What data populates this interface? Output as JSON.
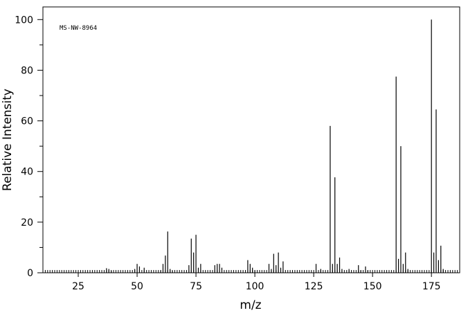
{
  "chart_data": {
    "type": "bar",
    "title": "",
    "annotation": "MS-NW-8964",
    "xlabel": "m/z",
    "ylabel": "Relative Intensity",
    "xlim": [
      10,
      187
    ],
    "ylim": [
      0,
      105
    ],
    "xticks": [
      25,
      50,
      75,
      100,
      125,
      150,
      175
    ],
    "yticks": [
      0,
      20,
      40,
      60,
      80,
      100
    ],
    "x_tick_labels": [
      "25",
      "50",
      "75",
      "100",
      "125",
      "150",
      "175"
    ],
    "y_tick_labels": [
      "0",
      "20",
      "40",
      "60",
      "80",
      "100"
    ],
    "grid": false,
    "series": [
      {
        "points": [
          [
            37,
            1.8
          ],
          [
            38,
            1.5
          ],
          [
            39,
            0.8
          ],
          [
            49,
            1.5
          ],
          [
            50,
            3.5
          ],
          [
            51,
            2.5
          ],
          [
            53,
            2.0
          ],
          [
            60,
            1.0
          ],
          [
            61,
            3.5
          ],
          [
            62,
            6.8
          ],
          [
            63,
            16.3
          ],
          [
            64,
            1.5
          ],
          [
            65,
            0.8
          ],
          [
            72,
            3.0
          ],
          [
            73,
            13.5
          ],
          [
            74,
            8.0
          ],
          [
            75,
            15.0
          ],
          [
            76,
            2.0
          ],
          [
            77,
            3.5
          ],
          [
            83,
            3.0
          ],
          [
            84,
            3.5
          ],
          [
            85,
            3.5
          ],
          [
            86,
            2.0
          ],
          [
            97,
            5.0
          ],
          [
            98,
            3.5
          ],
          [
            99,
            2.0
          ],
          [
            100,
            1.0
          ],
          [
            106,
            3.5
          ],
          [
            107,
            1.5
          ],
          [
            108,
            7.5
          ],
          [
            109,
            3.0
          ],
          [
            110,
            8.0
          ],
          [
            111,
            2.0
          ],
          [
            112,
            4.5
          ],
          [
            126,
            3.5
          ],
          [
            128,
            1.5
          ],
          [
            132,
            58.0
          ],
          [
            133,
            3.5
          ],
          [
            134,
            37.7
          ],
          [
            135,
            3.5
          ],
          [
            136,
            6.0
          ],
          [
            137,
            1.5
          ],
          [
            140,
            1.5
          ],
          [
            144,
            3.0
          ],
          [
            145,
            1.0
          ],
          [
            147,
            2.5
          ],
          [
            148,
            1.0
          ],
          [
            160,
            77.5
          ],
          [
            161,
            5.5
          ],
          [
            162,
            50.0
          ],
          [
            163,
            3.5
          ],
          [
            164,
            8.0
          ],
          [
            165,
            1.5
          ],
          [
            175,
            100.0
          ],
          [
            176,
            8.0
          ],
          [
            177,
            64.5
          ],
          [
            178,
            5.0
          ],
          [
            179,
            10.7
          ],
          [
            180,
            1.5
          ]
        ]
      }
    ]
  }
}
